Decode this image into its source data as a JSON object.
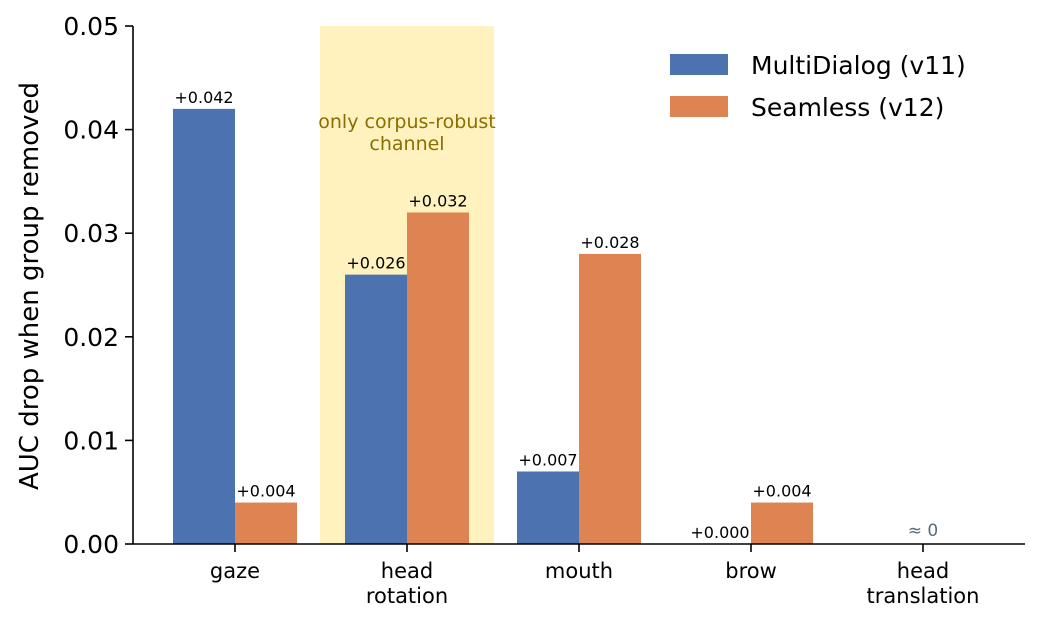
{
  "chart_data": {
    "type": "bar",
    "categories": [
      "gaze",
      "head\nrotation",
      "mouth",
      "brow",
      "head\ntranslation"
    ],
    "series": [
      {
        "name": "MultiDialog (v11)",
        "color": "#4c72b0",
        "values": [
          0.042,
          0.026,
          0.007,
          0.0,
          null
        ],
        "labels": [
          "+0.042",
          "+0.026",
          "+0.007",
          "+0.000",
          ""
        ]
      },
      {
        "name": "Seamless (v12)",
        "color": "#dd8452",
        "values": [
          0.004,
          0.032,
          0.028,
          0.004,
          null
        ],
        "labels": [
          "+0.004",
          "+0.032",
          "+0.028",
          "+0.004",
          ""
        ]
      }
    ],
    "ylabel": "AUC drop when group removed",
    "xlabel": "",
    "ylim": [
      0,
      0.05
    ],
    "yticks": [
      "0.00",
      "0.01",
      "0.02",
      "0.03",
      "0.04",
      "0.05"
    ],
    "ytick_values": [
      0,
      0.01,
      0.02,
      0.03,
      0.04,
      0.05
    ],
    "highlight": {
      "category_index": 1,
      "color": "#fff2bf",
      "text": "only corpus-robust\nchannel",
      "text_color": "#8b6e00"
    },
    "annotations": [
      {
        "category_index": 4,
        "text": "≈ 0",
        "color": "#5a6a7a"
      }
    ],
    "legend_position": "top-right",
    "grid": false
  }
}
